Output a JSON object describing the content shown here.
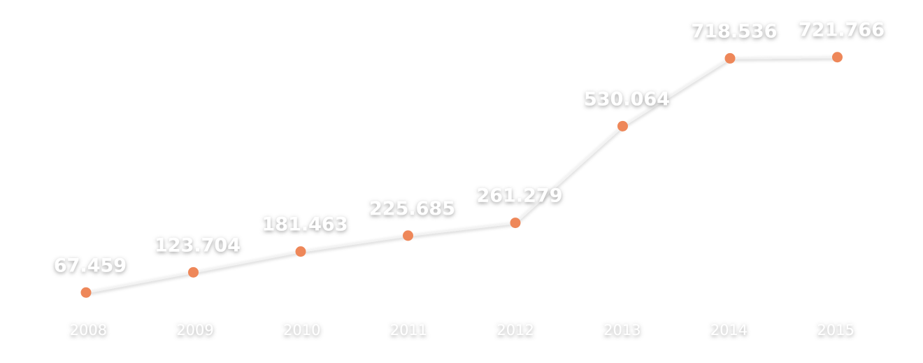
{
  "chart_data": {
    "type": "line",
    "categories": [
      "2008",
      "2009",
      "2010",
      "2011",
      "2012",
      "2013",
      "2014",
      "2015"
    ],
    "values": [
      67.459,
      123.704,
      181.463,
      225.685,
      261.279,
      530.064,
      718.536,
      721.766
    ],
    "data_labels": [
      "67.459",
      "123.704",
      "181.463",
      "225.685",
      "261.279",
      "530.064",
      "718.536",
      "721.766"
    ],
    "title": "",
    "xlabel": "",
    "ylabel": "",
    "grid": false,
    "legend": "none",
    "colors": {
      "line": "#f3f3f3",
      "marker": "#ee8759",
      "axis": "#f0f0f0",
      "label": "#ffffff",
      "label_shadow": "#555555"
    }
  }
}
